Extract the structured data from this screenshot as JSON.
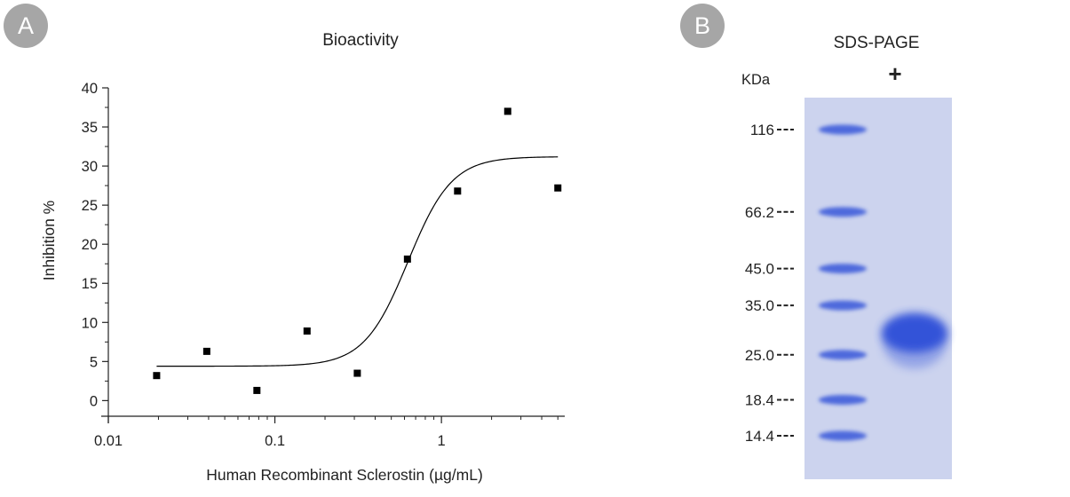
{
  "panels": {
    "a": {
      "badge": "A",
      "badge_color": "#a6a6a6"
    },
    "b": {
      "badge": "B",
      "badge_color": "#a6a6a6"
    }
  },
  "chart_data": {
    "type": "scatter",
    "title": "Bioactivity",
    "xlabel": "Human Recombinant Sclerostin (µg/mL)",
    "ylabel": "Inhibition %",
    "xscale": "log",
    "xlim": [
      0.01,
      5.5
    ],
    "ylim": [
      -2,
      40
    ],
    "xticks": [
      0.01,
      0.1,
      1
    ],
    "xtick_labels": [
      "0.01",
      "0.1",
      "1"
    ],
    "yticks": [
      0,
      5,
      10,
      15,
      20,
      25,
      30,
      35,
      40
    ],
    "grid": false,
    "series": [
      {
        "kind": "points",
        "x": [
          0.0195,
          0.039,
          0.078,
          0.156,
          0.3125,
          0.625,
          1.25,
          2.5,
          5.0
        ],
        "y": [
          3.2,
          6.3,
          1.3,
          8.9,
          3.5,
          18.1,
          26.8,
          37.0,
          27.2
        ],
        "color": "#000000"
      },
      {
        "kind": "fit",
        "bottom": 4.4,
        "top": 31.2,
        "ec50": 0.63,
        "hill": 3.3,
        "x_range": [
          0.0195,
          5.0
        ],
        "color": "#000000"
      }
    ]
  },
  "gel": {
    "title": "SDS-PAGE",
    "unit_label": "KDa",
    "lane_label": "+",
    "gel_color": "#ccd3ee",
    "band_color": "#2d4fd8",
    "markers": [
      {
        "label": "116",
        "kda": 116
      },
      {
        "label": "66.2",
        "kda": 66.2
      },
      {
        "label": "45.0",
        "kda": 45.0
      },
      {
        "label": "35.0",
        "kda": 35.0
      },
      {
        "label": "25.0",
        "kda": 25.0
      },
      {
        "label": "18.4",
        "kda": 18.4
      },
      {
        "label": "14.4",
        "kda": 14.4
      }
    ],
    "sample_band_kda": 29
  }
}
